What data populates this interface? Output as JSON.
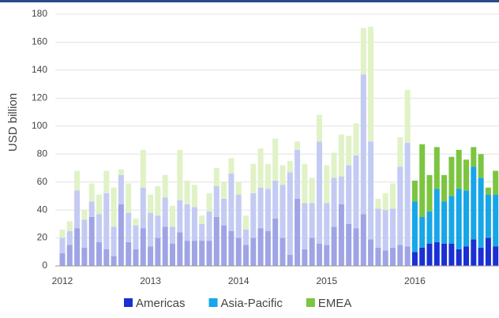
{
  "chart_data": {
    "type": "stacked_bar",
    "y_label": "USD billion",
    "categories": [
      "2012",
      null,
      null,
      null,
      null,
      null,
      null,
      null,
      null,
      null,
      null,
      null,
      "2013",
      null,
      null,
      null,
      null,
      null,
      null,
      null,
      null,
      null,
      null,
      null,
      "2014",
      null,
      null,
      null,
      null,
      null,
      null,
      null,
      null,
      null,
      null,
      null,
      "2015",
      null,
      null,
      null,
      null,
      null,
      null,
      null,
      null,
      null,
      null,
      null,
      "2016",
      null,
      null,
      null,
      null,
      null,
      null,
      null,
      null,
      null,
      null,
      null
    ],
    "emphasis_start": "2016",
    "series": [
      {
        "name": "Americas",
        "color": "#1a2fd4",
        "faded_color": "#9ea4e4",
        "values": [
          9,
          15,
          27,
          13,
          35,
          17,
          12,
          7,
          44,
          17,
          12,
          27,
          14,
          20,
          28,
          16,
          24,
          18,
          18,
          18,
          18,
          35,
          29,
          25,
          20,
          15,
          20,
          27,
          25,
          34,
          20,
          8,
          48,
          12,
          20,
          16,
          15,
          28,
          44,
          30,
          27,
          37,
          19,
          13,
          11,
          13,
          15,
          14,
          10,
          13,
          16,
          17,
          16,
          16,
          12,
          14,
          19,
          13,
          20,
          14
        ]
      },
      {
        "name": "Asia-Pacific",
        "color": "#17a6e8",
        "faded_color": "#c3cbf3",
        "values": [
          11,
          10,
          27,
          20,
          11,
          20,
          40,
          21,
          21,
          21,
          17,
          29,
          24,
          16,
          21,
          12,
          23,
          26,
          24,
          12,
          21,
          22,
          19,
          41,
          31,
          11,
          32,
          29,
          30,
          27,
          38,
          59,
          35,
          33,
          25,
          73,
          30,
          35,
          20,
          42,
          52,
          100,
          70,
          28,
          29,
          28,
          56,
          74,
          36,
          22,
          23,
          38,
          30,
          34,
          43,
          40,
          52,
          50,
          31,
          37
        ]
      },
      {
        "name": "EMEA",
        "color": "#7cc540",
        "faded_color": "#e0f2c6",
        "values": [
          6,
          7,
          14,
          7,
          13,
          14,
          16,
          28,
          4,
          21,
          5,
          27,
          13,
          21,
          16,
          15,
          36,
          17,
          16,
          6,
          13,
          13,
          12,
          11,
          9,
          10,
          21,
          28,
          18,
          30,
          14,
          8,
          6,
          28,
          18,
          19,
          27,
          18,
          30,
          21,
          23,
          33,
          82,
          7,
          12,
          18,
          21,
          38,
          15,
          52,
          26,
          30,
          19,
          28,
          28,
          22,
          14,
          17,
          5,
          17
        ]
      }
    ],
    "ylim": [
      0,
      180
    ],
    "yticks": [
      0,
      20,
      40,
      60,
      80,
      100,
      120,
      140,
      160,
      180
    ],
    "grid": true
  }
}
